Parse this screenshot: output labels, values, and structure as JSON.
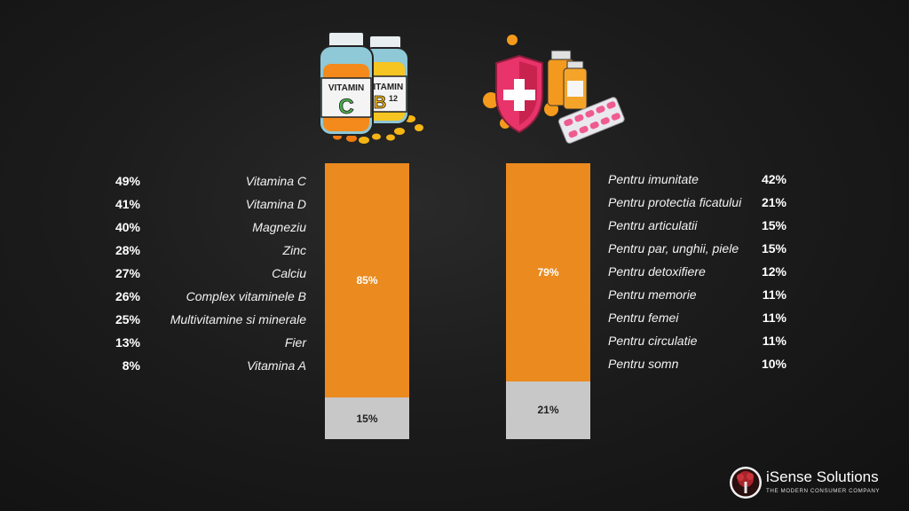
{
  "chart_data": [
    {
      "type": "bar",
      "stacked": true,
      "ylim": [
        0,
        100
      ],
      "segments": [
        {
          "value": 85,
          "label": "85%",
          "color": "#ea8a1f"
        },
        {
          "value": 15,
          "label": "15%",
          "color": "#c8c8c8"
        }
      ],
      "items": [
        {
          "label": "Vitamina C",
          "value": "49%"
        },
        {
          "label": "Vitamina D",
          "value": "41%"
        },
        {
          "label": "Magneziu",
          "value": "40%"
        },
        {
          "label": "Zinc",
          "value": "28%"
        },
        {
          "label": "Calciu",
          "value": "27%"
        },
        {
          "label": "Complex vitaminele B",
          "value": "26%"
        },
        {
          "label": "Multivitamine si minerale",
          "value": "25%"
        },
        {
          "label": "Fier",
          "value": "13%"
        },
        {
          "label": "Vitamina A",
          "value": "8%"
        }
      ]
    },
    {
      "type": "bar",
      "stacked": true,
      "ylim": [
        0,
        100
      ],
      "segments": [
        {
          "value": 79,
          "label": "79%",
          "color": "#ea8a1f"
        },
        {
          "value": 21,
          "label": "21%",
          "color": "#c8c8c8"
        }
      ],
      "items": [
        {
          "label": "Pentru imunitate",
          "value": "42%"
        },
        {
          "label": "Pentru protectia ficatului",
          "value": "21%"
        },
        {
          "label": "Pentru articulatii",
          "value": "15%"
        },
        {
          "label": "Pentru par, unghii, piele",
          "value": "15%"
        },
        {
          "label": "Pentru detoxifiere",
          "value": "12%"
        },
        {
          "label": "Pentru memorie",
          "value": "11%"
        },
        {
          "label": "Pentru femei",
          "value": "11%"
        },
        {
          "label": "Pentru circulatie",
          "value": "11%"
        },
        {
          "label": "Pentru somn",
          "value": "10%"
        }
      ]
    }
  ],
  "illustrations": {
    "left": {
      "icon": "vitamin-bottles-icon",
      "bottle1_word": "VITAMIN",
      "bottle1_letter": "C",
      "bottle2_word": "VITAMIN",
      "bottle2_letter": "B",
      "bottle2_sup": "12"
    },
    "right": {
      "icon": "health-shield-icon"
    }
  },
  "logo": {
    "name": "iSense Solutions",
    "tagline": "THE MODERN CONSUMER COMPANY",
    "icon": "tree-logo-icon"
  }
}
